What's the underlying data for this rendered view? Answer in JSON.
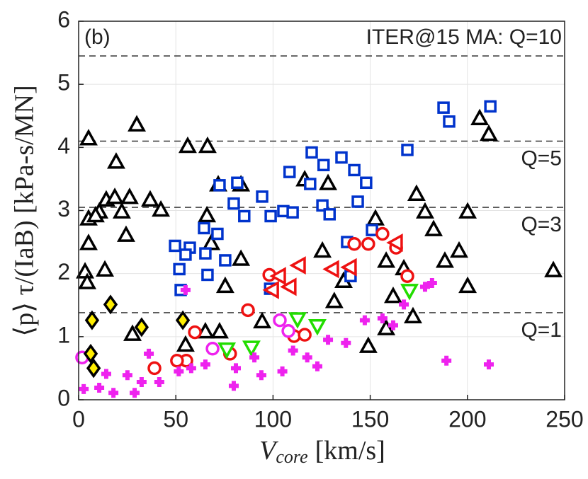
{
  "chart_data": {
    "type": "scatter",
    "panel_label": "(b)",
    "xlabel": {
      "symbol": "V",
      "subscript": "core",
      "unit": "[km/s]"
    },
    "ylabel": "⟨p⟩ τ/(IaB) [kPa-s/MN]",
    "xlim": [
      0,
      250
    ],
    "xticks": [
      0,
      50,
      100,
      150,
      200,
      250
    ],
    "ylim": [
      0,
      6
    ],
    "yticks": [
      0,
      1,
      2,
      3,
      4,
      5,
      6
    ],
    "grid": true,
    "reference_lines": [
      {
        "value": 5.45,
        "label": "ITER@15 MA: Q=10"
      },
      {
        "value": 4.1,
        "label": "Q=5"
      },
      {
        "value": 3.05,
        "label": "Q=3"
      },
      {
        "value": 1.38,
        "label": "Q=1"
      }
    ],
    "series": [
      {
        "marker": "triangle-up",
        "color": "#000000",
        "x": [
          5.1,
          29.9,
          19.3,
          5.1,
          3.3,
          4.4,
          13.5,
          5.1,
          10.6,
          14.2,
          18.6,
          26.2,
          22.2,
          24.4,
          36.8,
          42.3,
          8.7,
          27.7,
          56.1,
          66.3,
          66,
          68.2,
          71.8,
          55,
          65.2,
          72.5,
          75.4,
          83.5,
          83.5,
          125.4,
          131.5,
          136.3,
          149,
          152.7,
          158.2,
          158.2,
          161.8,
          167.3,
          172,
          173.8,
          178.2,
          182.6,
          188.4,
          195.7,
          200.1,
          200.1,
          206.3,
          211,
          244.2,
          116.3,
          128.3,
          94.4
        ],
        "values": [
          4.13,
          4.35,
          3.76,
          2.47,
          2.02,
          1.85,
          2.05,
          2.86,
          2.97,
          3.16,
          3.2,
          3.2,
          2.97,
          2.6,
          3.16,
          3.0,
          2.91,
          1.03,
          4.01,
          4.01,
          2.91,
          2.47,
          3.4,
          0.86,
          1.07,
          1.07,
          1.79,
          2.22,
          3.4,
          2.35,
          1.55,
          1.87,
          0.84,
          2.86,
          2.19,
          1.12,
          1.63,
          2.07,
          1.31,
          3.25,
          2.97,
          2.69,
          2.19,
          2.35,
          2.97,
          1.79,
          4.45,
          4.2,
          2.04,
          3.48,
          3.42,
          1.23
        ]
      },
      {
        "marker": "square",
        "color": "#0033cc",
        "x": [
          187.7,
          190.6,
          211.8,
          169.1,
          119.9,
          135.2,
          126,
          141.8,
          108.5,
          147.9,
          119.1,
          81.6,
          72.5,
          94.4,
          79.8,
          85.2,
          98.8,
          105.3,
          110.1,
          125.4,
          129.1,
          143.6,
          64.5,
          71.4,
          49.6,
          57.2,
          65.2,
          75.4,
          55,
          51.8,
          66.3,
          52.5,
          138.1,
          150.9,
          139.9,
          98.5
        ],
        "values": [
          4.63,
          4.41,
          4.65,
          3.96,
          3.92,
          3.84,
          3.72,
          3.64,
          3.61,
          3.44,
          3.42,
          3.44,
          3.4,
          3.22,
          3.11,
          2.91,
          2.91,
          2.99,
          2.97,
          3.08,
          2.94,
          3.14,
          2.72,
          2.63,
          2.44,
          2.41,
          2.32,
          2.21,
          2.3,
          2.07,
          1.98,
          1.74,
          2.5,
          2.69,
          1.96,
          1.76
        ]
      },
      {
        "marker": "circle",
        "color": "#ee1111",
        "x": [
          59.8,
          77.9,
          87.1,
          98.1,
          110.8,
          116.3,
          149,
          156.3,
          163.3,
          169.1,
          55.4,
          39,
          50.6,
          141.8
        ],
        "values": [
          1.07,
          0.73,
          1.42,
          1.98,
          1.01,
          1.03,
          2.47,
          2.63,
          2.41,
          1.96,
          0.62,
          0.5,
          0.62,
          2.47
        ]
      },
      {
        "marker": "triangle-left",
        "color": "#ee1111",
        "x": [
          113.7,
          139.9,
          130.8,
          99.9,
          108.9,
          103.5,
          163.6
        ],
        "values": [
          2.13,
          2.1,
          2.07,
          1.74,
          1.79,
          1.96,
          2.49
        ]
      },
      {
        "marker": "triangle-down",
        "color": "#22dd00",
        "x": [
          88.9,
          76.2,
          122.8,
          112.6,
          170.2
        ],
        "values": [
          0.84,
          0.81,
          1.18,
          1.29,
          1.74
        ]
      },
      {
        "marker": "circle",
        "color": "#ee22ee",
        "x": [
          68.9,
          103.5,
          107.9,
          1.8
        ],
        "values": [
          0.81,
          1.26,
          1.09,
          0.67
        ]
      },
      {
        "marker": "plus",
        "color": "#ee22ee",
        "x": [
          2.6,
          10.6,
          17.9,
          28.8,
          36.1,
          41.5,
          51.5,
          57.9,
          65.2,
          79.8,
          80.9,
          90.4,
          94,
          104.8,
          110.3,
          117.6,
          122.8,
          128.3,
          137.5,
          147.2,
          156.3,
          161.8,
          167.3,
          178.2,
          181.8,
          189.2,
          211,
          55,
          32.4,
          25.1,
          14.2
        ],
        "values": [
          0.17,
          0.19,
          0.11,
          0.11,
          0.73,
          0.28,
          0.45,
          0.5,
          0.56,
          0.22,
          0.5,
          0.67,
          0.39,
          0.45,
          0.78,
          0.67,
          0.53,
          0.95,
          0.9,
          1.26,
          1.29,
          1.18,
          1.51,
          1.79,
          1.85,
          0.62,
          0.56,
          1.74,
          0.28,
          0.39,
          0.41
        ]
      },
      {
        "marker": "diamond",
        "color": "#000000",
        "fill": "#ffee00",
        "x": [
          6.9,
          16.4,
          32.4,
          53.6,
          6.2,
          7.7
        ],
        "values": [
          1.26,
          1.51,
          1.15,
          1.26,
          0.73,
          0.5
        ]
      }
    ]
  }
}
